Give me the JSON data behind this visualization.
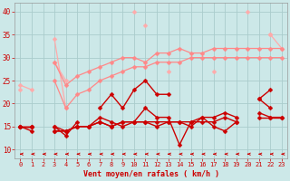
{
  "background_color": "#cce8e8",
  "grid_color": "#aacccc",
  "xlabel": "Vent moyen/en rafales ( km/h )",
  "xlabel_color": "#cc0000",
  "tick_color": "#cc0000",
  "x_ticks": [
    0,
    1,
    2,
    3,
    4,
    5,
    6,
    7,
    8,
    9,
    10,
    11,
    12,
    13,
    14,
    15,
    16,
    17,
    18,
    19,
    20,
    21,
    22,
    23
  ],
  "ylim": [
    8,
    42
  ],
  "xlim": [
    -0.5,
    23.5
  ],
  "yticks": [
    10,
    15,
    20,
    25,
    30,
    35,
    40
  ],
  "lines": [
    {
      "color": "#ffaaaa",
      "lw": 0.9,
      "marker": "D",
      "markersize": 2.5,
      "y": [
        24,
        23,
        null,
        34,
        19,
        null,
        null,
        null,
        null,
        null,
        40,
        null,
        null,
        null,
        null,
        null,
        null,
        null,
        null,
        null,
        40,
        null,
        35,
        32
      ]
    },
    {
      "color": "#ffaaaa",
      "lw": 0.9,
      "marker": "D",
      "markersize": 2.5,
      "y": [
        23,
        null,
        null,
        29,
        25,
        null,
        null,
        null,
        null,
        null,
        null,
        37,
        null,
        27,
        null,
        null,
        null,
        27,
        null,
        null,
        null,
        null,
        35,
        null
      ]
    },
    {
      "color": "#ff8888",
      "lw": 0.9,
      "marker": "D",
      "markersize": 2.5,
      "y": [
        null,
        null,
        null,
        29,
        24,
        26,
        27,
        28,
        29,
        30,
        30,
        29,
        31,
        31,
        32,
        31,
        31,
        32,
        32,
        32,
        32,
        32,
        32,
        32
      ]
    },
    {
      "color": "#ff8888",
      "lw": 0.9,
      "marker": "D",
      "markersize": 2.5,
      "y": [
        null,
        null,
        null,
        25,
        19,
        22,
        23,
        25,
        26,
        27,
        28,
        28,
        29,
        29,
        29,
        30,
        30,
        30,
        30,
        30,
        30,
        30,
        30,
        30
      ]
    },
    {
      "color": "#cc0000",
      "lw": 1.0,
      "marker": "D",
      "markersize": 2.5,
      "y": [
        15,
        14,
        null,
        15,
        13,
        16,
        null,
        19,
        22,
        19,
        23,
        25,
        22,
        22,
        null,
        null,
        null,
        null,
        null,
        null,
        null,
        21,
        23,
        null
      ]
    },
    {
      "color": "#cc0000",
      "lw": 1.0,
      "marker": "D",
      "markersize": 2.5,
      "y": [
        15,
        15,
        null,
        15,
        14,
        15,
        15,
        17,
        16,
        15,
        16,
        19,
        17,
        17,
        11,
        16,
        17,
        15,
        14,
        16,
        null,
        21,
        19,
        null
      ]
    },
    {
      "color": "#cc0000",
      "lw": 1.0,
      "marker": "D",
      "markersize": 2.5,
      "y": [
        15,
        15,
        null,
        14,
        14,
        15,
        15,
        16,
        15,
        16,
        16,
        16,
        15,
        16,
        16,
        15,
        17,
        17,
        18,
        17,
        null,
        18,
        17,
        17
      ]
    },
    {
      "color": "#cc0000",
      "lw": 1.0,
      "marker": "D",
      "markersize": 2.5,
      "y": [
        15,
        15,
        null,
        14,
        14,
        15,
        15,
        16,
        15,
        16,
        16,
        16,
        16,
        16,
        16,
        16,
        16,
        16,
        17,
        16,
        null,
        17,
        17,
        17
      ]
    }
  ]
}
